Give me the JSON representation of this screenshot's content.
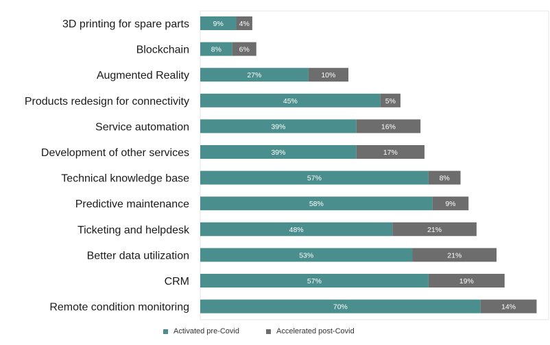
{
  "chart_data": {
    "type": "bar",
    "orientation": "horizontal",
    "stacked": true,
    "categories": [
      "3D printing for spare parts",
      "Blockchain",
      "Augmented Reality",
      "Products redesign for connectivity",
      "Service automation",
      "Development of other services",
      "Technical knowledge base",
      "Predictive maintenance",
      "Ticketing and helpdesk",
      "Better data utilization",
      "CRM",
      "Remote condition monitoring"
    ],
    "series": [
      {
        "name": "Activated pre-Covid",
        "color": "#4a8f8d",
        "values": [
          9,
          8,
          27,
          45,
          39,
          39,
          57,
          58,
          48,
          53,
          57,
          70
        ]
      },
      {
        "name": "Accelerated post-Covid",
        "color": "#6d6d6d",
        "values": [
          4,
          6,
          10,
          5,
          16,
          17,
          8,
          9,
          21,
          21,
          19,
          14
        ]
      }
    ],
    "value_suffix": "%",
    "xlim": [
      0,
      87
    ],
    "grid": false,
    "legend_position": "bottom"
  }
}
